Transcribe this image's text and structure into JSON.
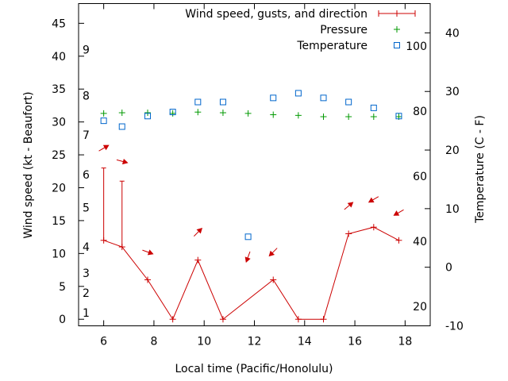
{
  "chart_data": {
    "type": "line",
    "x_label": "Local time (Pacific/Honolulu)",
    "y_label_left": "Wind speed (kt - Beaufort)",
    "y_label_right": "Temperature (C - F)",
    "x_range": [
      5,
      19
    ],
    "y_left_range": [
      -1,
      48
    ],
    "temp_c_range": [
      -10,
      45
    ],
    "x_ticks": [
      6,
      8,
      10,
      12,
      14,
      16,
      18
    ],
    "y_left_ticks": [
      0,
      5,
      10,
      15,
      20,
      25,
      30,
      35,
      40,
      45
    ],
    "temp_c_ticks": [
      -10,
      0,
      10,
      20,
      30,
      40
    ],
    "temp_f_labels": [
      {
        "value": 20,
        "label": "20"
      },
      {
        "value": 40,
        "label": "40"
      },
      {
        "value": 60,
        "label": "60"
      },
      {
        "value": 80,
        "label": "80"
      },
      {
        "value": 100,
        "label": "100"
      }
    ],
    "beaufort_labels": [
      {
        "kt": 1,
        "label": "1"
      },
      {
        "kt": 4,
        "label": "2"
      },
      {
        "kt": 7,
        "label": "3"
      },
      {
        "kt": 11,
        "label": "4"
      },
      {
        "kt": 17,
        "label": "5"
      },
      {
        "kt": 22,
        "label": "6"
      },
      {
        "kt": 28,
        "label": "7"
      },
      {
        "kt": 34,
        "label": "8"
      },
      {
        "kt": 41,
        "label": "9"
      }
    ],
    "legend": {
      "position": "top-right",
      "entries": [
        {
          "label": "Wind speed, gusts, and direction",
          "color": "#cc0000",
          "marker": "errorbar"
        },
        {
          "label": "Pressure",
          "color": "#009900",
          "marker": "plus"
        },
        {
          "label": "Temperature",
          "color": "#0066cc",
          "marker": "square"
        }
      ]
    },
    "series": [
      {
        "name": "Wind speed, gusts, and direction",
        "color": "#cc0000",
        "axis": "left",
        "points": [
          {
            "x": 6.0,
            "speed": 12,
            "gust": 23,
            "dir": 240
          },
          {
            "x": 6.73,
            "speed": 11,
            "gust": 21,
            "dir": 285
          },
          {
            "x": 7.75,
            "speed": 6,
            "gust": null,
            "dir": 290
          },
          {
            "x": 8.75,
            "speed": 0,
            "gust": null,
            "dir": null
          },
          {
            "x": 9.75,
            "speed": 9,
            "gust": null,
            "dir": 225
          },
          {
            "x": 10.75,
            "speed": 0,
            "gust": null,
            "dir": null
          },
          {
            "x": 12.75,
            "speed": 6,
            "gust": null,
            "dir": 45
          },
          {
            "x": 13.75,
            "speed": 0,
            "gust": null,
            "dir": null
          },
          {
            "x": 14.75,
            "speed": 0,
            "gust": null,
            "dir": null
          },
          {
            "x": 15.75,
            "speed": 13,
            "gust": null,
            "dir": 230
          },
          {
            "x": 16.75,
            "speed": 14,
            "gust": null,
            "dir": 60
          },
          {
            "x": 17.75,
            "speed": 12,
            "gust": null,
            "dir": 60
          }
        ],
        "extra_arrows": [
          {
            "x": 11.75,
            "at_kt": 9.5,
            "dir": 20
          }
        ]
      },
      {
        "name": "Pressure",
        "color": "#009900",
        "axis": "left",
        "points": [
          {
            "x": 6.0,
            "y": 31.3
          },
          {
            "x": 6.73,
            "y": 31.4
          },
          {
            "x": 7.75,
            "y": 31.4
          },
          {
            "x": 8.75,
            "y": 31.3
          },
          {
            "x": 9.75,
            "y": 31.5
          },
          {
            "x": 10.75,
            "y": 31.4
          },
          {
            "x": 11.75,
            "y": 31.3
          },
          {
            "x": 12.75,
            "y": 31.1
          },
          {
            "x": 13.75,
            "y": 31.0
          },
          {
            "x": 14.75,
            "y": 30.8
          },
          {
            "x": 15.75,
            "y": 30.8
          },
          {
            "x": 16.75,
            "y": 30.8
          },
          {
            "x": 17.75,
            "y": 30.8
          }
        ]
      },
      {
        "name": "Temperature",
        "color": "#0066cc",
        "axis": "right_c",
        "points": [
          {
            "x": 6.0,
            "y": 25.0
          },
          {
            "x": 6.73,
            "y": 24.0
          },
          {
            "x": 7.75,
            "y": 25.8
          },
          {
            "x": 8.75,
            "y": 26.5
          },
          {
            "x": 9.75,
            "y": 28.2
          },
          {
            "x": 10.75,
            "y": 28.2
          },
          {
            "x": 11.75,
            "y": 5.2
          },
          {
            "x": 12.75,
            "y": 28.9
          },
          {
            "x": 13.75,
            "y": 29.7
          },
          {
            "x": 14.75,
            "y": 28.9
          },
          {
            "x": 15.75,
            "y": 28.2
          },
          {
            "x": 16.75,
            "y": 27.2
          },
          {
            "x": 17.75,
            "y": 25.8
          }
        ]
      }
    ]
  }
}
